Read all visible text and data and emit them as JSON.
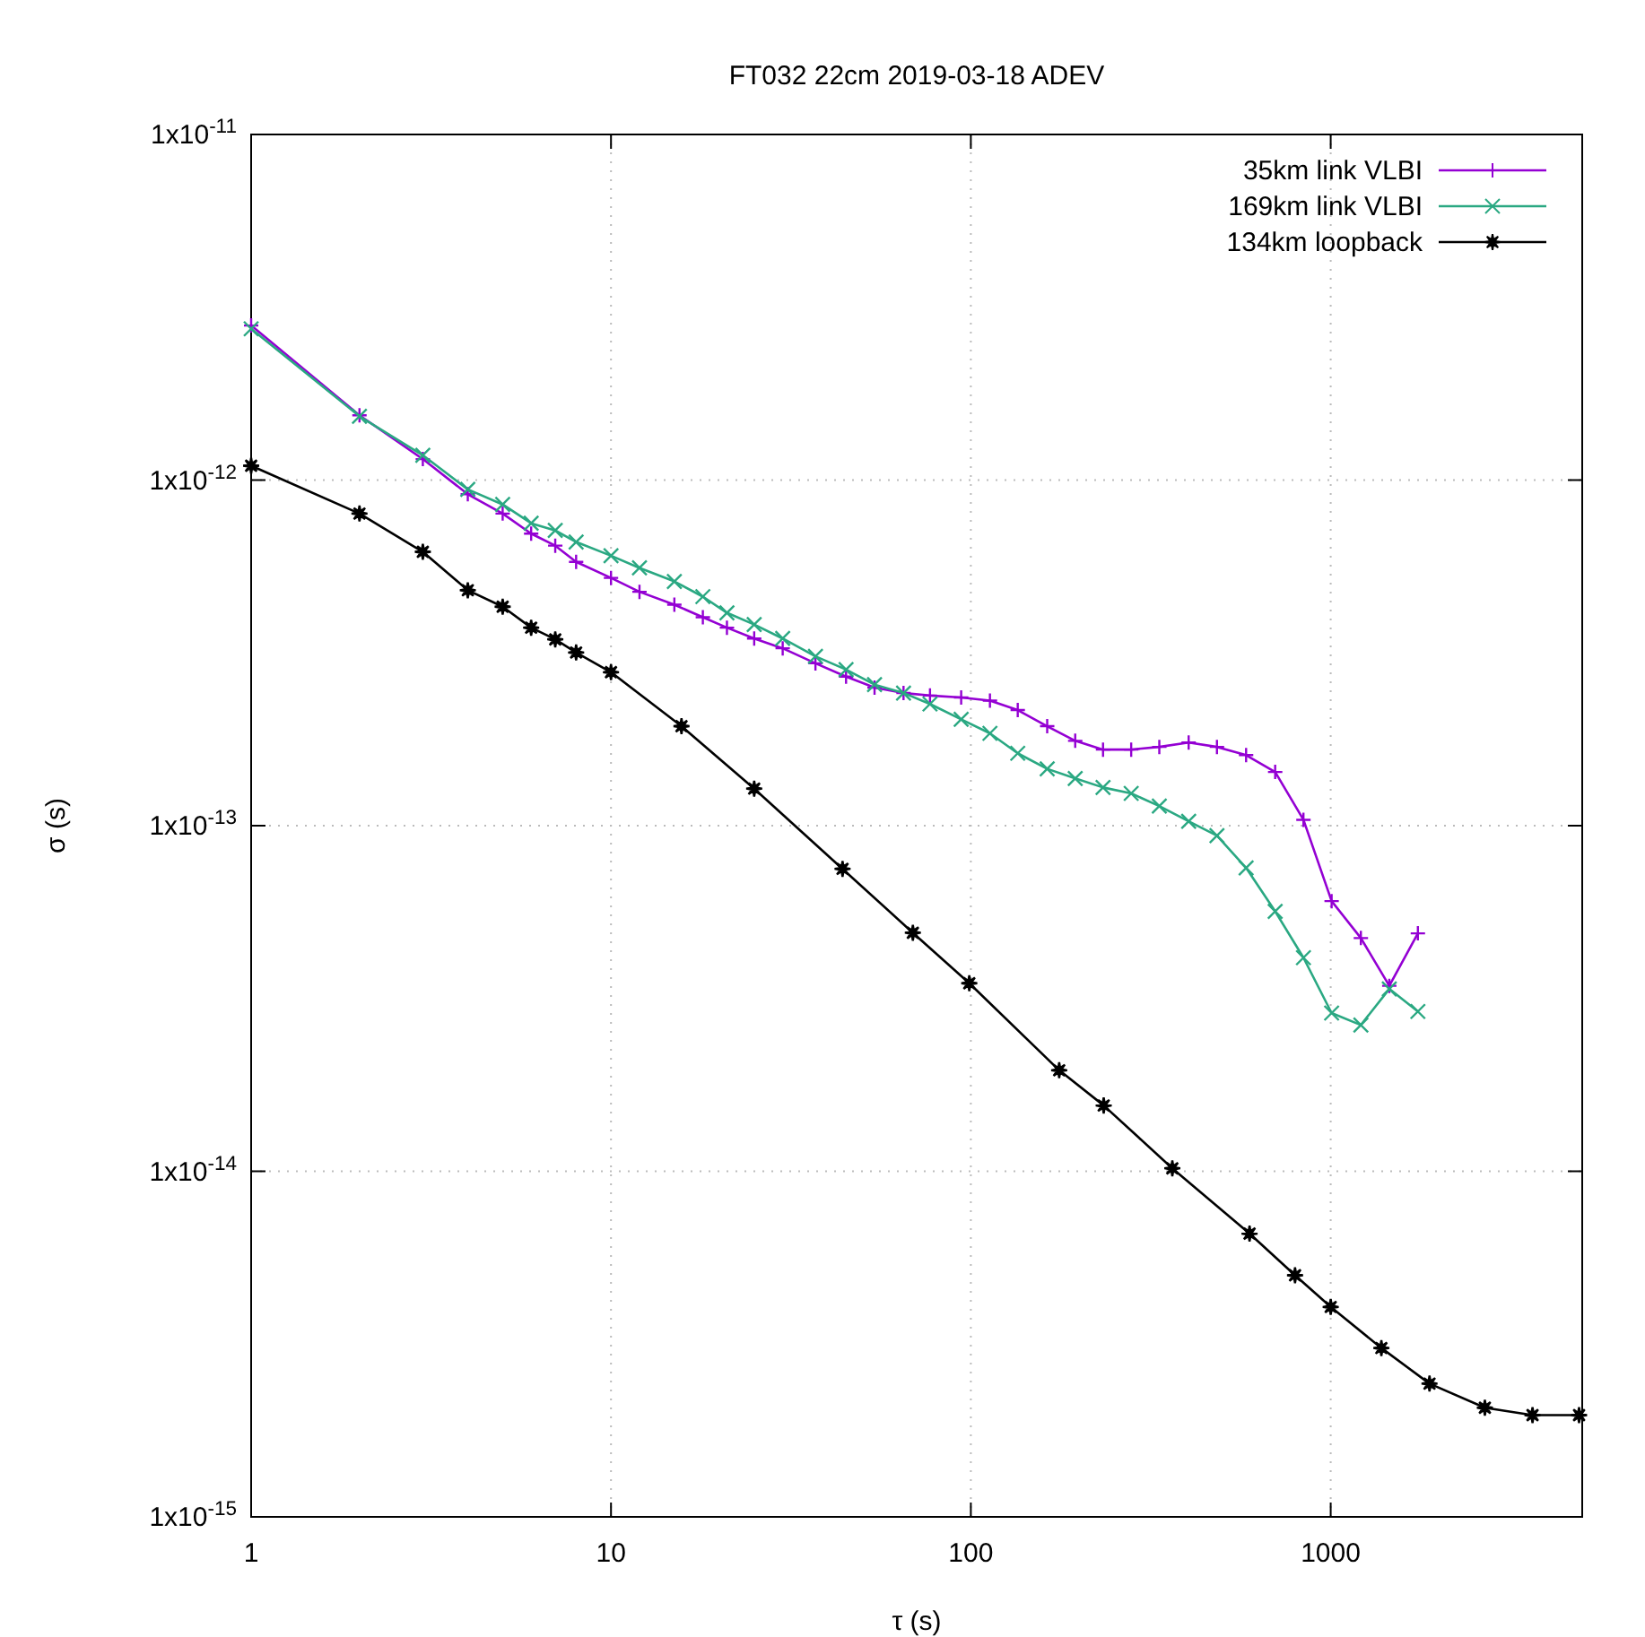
{
  "chart_data": {
    "type": "line",
    "title": "FT032 22cm 2019-03-18 ADEV",
    "xlabel": "τ (s)",
    "ylabel": "σ (s)",
    "log": "xy",
    "grid": true,
    "legend": "top right",
    "line_style": "solid",
    "xlim": [
      1,
      5000
    ],
    "xticks": [
      1,
      10,
      100,
      1000
    ],
    "ylim": [
      1e-15,
      1e-11
    ],
    "yticks": [
      {
        "value": 1e-15,
        "label": "1x10$^{-15}$"
      },
      {
        "value": 1e-14,
        "label": "1x10$^{-14}$"
      },
      {
        "value": 1e-13,
        "label": "1x10$^{-13}$"
      },
      {
        "value": 1e-12,
        "label": "1x10$^{-12}$"
      },
      {
        "value": 1e-11,
        "label": "1x10$^{-11}$"
      }
    ],
    "series": [
      {
        "name": "35km link VLBI",
        "color": "#9400d3",
        "marker": "cross",
        "x": [
          1,
          2,
          3,
          4,
          5,
          6,
          7,
          8,
          10,
          12,
          15,
          18,
          21,
          25,
          30,
          37,
          45,
          54,
          65,
          77,
          94,
          113,
          135,
          163,
          195,
          233,
          279,
          334,
          403,
          483,
          582,
          701,
          840,
          1006,
          1213,
          1455,
          1747
        ],
        "values": [
          2.8e-12,
          1.54e-12,
          1.15e-12,
          9.1e-13,
          8e-13,
          7e-13,
          6.46e-13,
          5.8e-13,
          5.21e-13,
          4.75e-13,
          4.36e-13,
          4.01e-13,
          3.74e-13,
          3.48e-13,
          3.26e-13,
          2.95e-13,
          2.7e-13,
          2.51e-13,
          2.42e-13,
          2.38e-13,
          2.35e-13,
          2.3e-13,
          2.16e-13,
          1.94e-13,
          1.76e-13,
          1.66e-13,
          1.66e-13,
          1.69e-13,
          1.74e-13,
          1.69e-13,
          1.6e-13,
          1.43e-13,
          1.04e-13,
          6.05e-14,
          4.73e-14,
          3.44e-14,
          4.88e-14
        ]
      },
      {
        "name": "169km link VLBI",
        "color": "#2aa882",
        "marker": "x",
        "x": [
          1,
          2,
          3,
          4,
          5,
          6,
          7,
          8,
          10,
          12,
          15,
          18,
          21,
          25,
          30,
          37,
          45,
          54,
          65,
          77,
          94,
          113,
          135,
          163,
          195,
          233,
          279,
          334,
          403,
          483,
          582,
          701,
          840,
          1006,
          1213,
          1455,
          1747
        ],
        "values": [
          2.74e-12,
          1.53e-12,
          1.18e-12,
          9.4e-13,
          8.5e-13,
          7.5e-13,
          7.15e-13,
          6.62e-13,
          6.04e-13,
          5.57e-13,
          5.09e-13,
          4.6e-13,
          4.13e-13,
          3.82e-13,
          3.48e-13,
          3.09e-13,
          2.83e-13,
          2.56e-13,
          2.42e-13,
          2.25e-13,
          2.03e-13,
          1.85e-13,
          1.62e-13,
          1.46e-13,
          1.37e-13,
          1.29e-13,
          1.24e-13,
          1.14e-13,
          1.03e-13,
          9.36e-14,
          7.55e-14,
          5.65e-14,
          4.15e-14,
          2.87e-14,
          2.65e-14,
          3.37e-14,
          2.9e-14
        ]
      },
      {
        "name": "134km loopback",
        "color": "#000000",
        "marker": "star",
        "x": [
          1,
          2,
          3,
          4,
          5,
          6,
          7,
          8,
          10,
          15.7,
          25,
          44,
          69,
          99,
          176,
          234,
          363,
          595,
          796,
          1000,
          1383,
          1882,
          2682,
          3638,
          4900
        ],
        "values": [
          1.1e-12,
          8e-13,
          6.2e-13,
          4.8e-13,
          4.3e-13,
          3.74e-13,
          3.46e-13,
          3.17e-13,
          2.78e-13,
          1.94e-13,
          1.28e-13,
          7.5e-14,
          4.9e-14,
          3.5e-14,
          1.96e-14,
          1.55e-14,
          1.02e-14,
          6.6e-15,
          5e-15,
          4.05e-15,
          3.08e-15,
          2.43e-15,
          2.07e-15,
          1.97e-15,
          1.97e-15
        ]
      }
    ]
  }
}
